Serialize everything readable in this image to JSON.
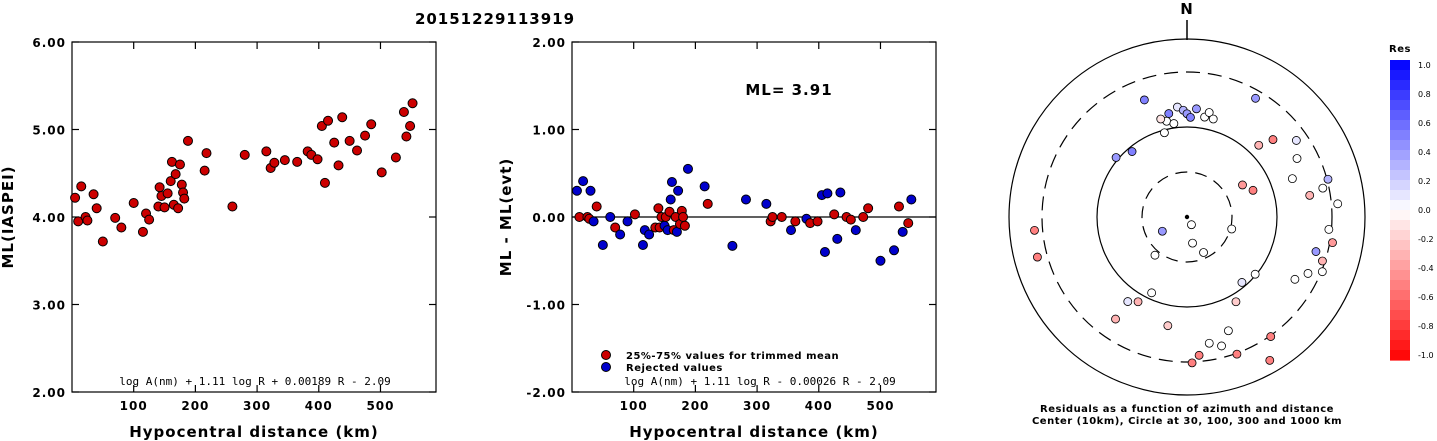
{
  "title": "20151229113919",
  "colors": {
    "red": "#cc0000",
    "blue": "#0000cc"
  },
  "chart_data": [
    {
      "type": "scatter",
      "ylabel": "ML(IASPEI)",
      "xlabel": "Hypocentral distance (km)",
      "xlim": [
        0,
        590
      ],
      "ylim": [
        2.0,
        6.0
      ],
      "xticks": [
        "100",
        "200",
        "300",
        "400",
        "500"
      ],
      "yticks": [
        "2.00",
        "3.00",
        "4.00",
        "5.00",
        "6.00"
      ],
      "formula": "log A(nm) + 1.11 log R + 0.00189 R - 2.09",
      "points": [
        [
          5,
          4.22
        ],
        [
          10,
          3.95
        ],
        [
          15,
          4.35
        ],
        [
          22,
          4.0
        ],
        [
          25,
          3.96
        ],
        [
          35,
          4.26
        ],
        [
          40,
          4.1
        ],
        [
          50,
          3.72
        ],
        [
          70,
          3.99
        ],
        [
          80,
          3.88
        ],
        [
          100,
          4.16
        ],
        [
          115,
          3.83
        ],
        [
          120,
          4.04
        ],
        [
          125,
          3.97
        ],
        [
          140,
          4.12
        ],
        [
          142,
          4.34
        ],
        [
          145,
          4.24
        ],
        [
          150,
          4.11
        ],
        [
          155,
          4.27
        ],
        [
          160,
          4.41
        ],
        [
          162,
          4.63
        ],
        [
          165,
          4.14
        ],
        [
          168,
          4.49
        ],
        [
          172,
          4.1
        ],
        [
          175,
          4.6
        ],
        [
          178,
          4.37
        ],
        [
          180,
          4.28
        ],
        [
          182,
          4.21
        ],
        [
          188,
          4.87
        ],
        [
          215,
          4.53
        ],
        [
          218,
          4.73
        ],
        [
          260,
          4.12
        ],
        [
          280,
          4.71
        ],
        [
          315,
          4.75
        ],
        [
          322,
          4.56
        ],
        [
          328,
          4.62
        ],
        [
          345,
          4.65
        ],
        [
          365,
          4.63
        ],
        [
          382,
          4.75
        ],
        [
          388,
          4.71
        ],
        [
          398,
          4.66
        ],
        [
          405,
          5.04
        ],
        [
          410,
          4.39
        ],
        [
          415,
          5.1
        ],
        [
          425,
          4.85
        ],
        [
          432,
          4.59
        ],
        [
          438,
          5.14
        ],
        [
          450,
          4.87
        ],
        [
          462,
          4.76
        ],
        [
          475,
          4.93
        ],
        [
          485,
          5.06
        ],
        [
          502,
          4.51
        ],
        [
          525,
          4.68
        ],
        [
          538,
          5.2
        ],
        [
          542,
          4.92
        ],
        [
          548,
          5.04
        ],
        [
          552,
          5.3
        ]
      ]
    },
    {
      "type": "scatter",
      "ylabel": "ML - ML(evt)",
      "xlabel": "Hypocentral distance (km)",
      "xlim": [
        0,
        590
      ],
      "ylim": [
        -2.0,
        2.0
      ],
      "xticks": [
        "100",
        "200",
        "300",
        "400",
        "500"
      ],
      "yticks": [
        "-2.00",
        "-1.00",
        "0.00",
        "1.00",
        "2.00"
      ],
      "annotation": "ML= 3.91",
      "formula": "log A(nm) + 1.11 log R - 0.00026 R - 2.09",
      "legend": [
        {
          "label": "25%-75% values for trimmed mean",
          "color": "red"
        },
        {
          "label": "Rejected values",
          "color": "blue"
        }
      ],
      "points": [
        [
          8,
          0.3,
          "blue"
        ],
        [
          12,
          0.0,
          "red"
        ],
        [
          18,
          0.41,
          "blue"
        ],
        [
          25,
          0.0,
          "red"
        ],
        [
          28,
          -0.02,
          "red"
        ],
        [
          30,
          0.3,
          "blue"
        ],
        [
          35,
          -0.05,
          "blue"
        ],
        [
          40,
          0.12,
          "red"
        ],
        [
          50,
          -0.32,
          "blue"
        ],
        [
          62,
          0.0,
          "blue"
        ],
        [
          70,
          -0.12,
          "red"
        ],
        [
          78,
          -0.2,
          "blue"
        ],
        [
          90,
          -0.05,
          "blue"
        ],
        [
          102,
          0.03,
          "red"
        ],
        [
          115,
          -0.32,
          "blue"
        ],
        [
          118,
          -0.15,
          "blue"
        ],
        [
          125,
          -0.2,
          "blue"
        ],
        [
          135,
          -0.12,
          "red"
        ],
        [
          140,
          0.1,
          "red"
        ],
        [
          142,
          -0.12,
          "red"
        ],
        [
          145,
          0.0,
          "red"
        ],
        [
          150,
          -0.1,
          "blue"
        ],
        [
          152,
          0.0,
          "red"
        ],
        [
          155,
          -0.15,
          "blue"
        ],
        [
          158,
          0.06,
          "red"
        ],
        [
          160,
          0.2,
          "blue"
        ],
        [
          162,
          0.4,
          "blue"
        ],
        [
          165,
          -0.15,
          "red"
        ],
        [
          168,
          0.0,
          "red"
        ],
        [
          170,
          -0.17,
          "blue"
        ],
        [
          172,
          0.3,
          "blue"
        ],
        [
          175,
          -0.08,
          "red"
        ],
        [
          178,
          0.07,
          "red"
        ],
        [
          180,
          0.0,
          "red"
        ],
        [
          183,
          -0.1,
          "red"
        ],
        [
          188,
          0.55,
          "blue"
        ],
        [
          215,
          0.35,
          "blue"
        ],
        [
          220,
          0.15,
          "red"
        ],
        [
          260,
          -0.33,
          "blue"
        ],
        [
          282,
          0.2,
          "blue"
        ],
        [
          315,
          0.15,
          "blue"
        ],
        [
          322,
          -0.05,
          "red"
        ],
        [
          325,
          0.0,
          "red"
        ],
        [
          340,
          0.0,
          "red"
        ],
        [
          355,
          -0.15,
          "blue"
        ],
        [
          362,
          -0.05,
          "red"
        ],
        [
          380,
          -0.02,
          "blue"
        ],
        [
          386,
          -0.07,
          "red"
        ],
        [
          398,
          -0.05,
          "red"
        ],
        [
          405,
          0.25,
          "blue"
        ],
        [
          410,
          -0.4,
          "blue"
        ],
        [
          414,
          0.27,
          "blue"
        ],
        [
          425,
          0.03,
          "red"
        ],
        [
          430,
          -0.25,
          "blue"
        ],
        [
          435,
          0.28,
          "blue"
        ],
        [
          445,
          0.0,
          "red"
        ],
        [
          452,
          -0.03,
          "red"
        ],
        [
          460,
          -0.15,
          "blue"
        ],
        [
          472,
          0.0,
          "red"
        ],
        [
          480,
          0.1,
          "red"
        ],
        [
          500,
          -0.5,
          "blue"
        ],
        [
          522,
          -0.38,
          "blue"
        ],
        [
          530,
          0.12,
          "red"
        ],
        [
          536,
          -0.17,
          "blue"
        ],
        [
          545,
          -0.07,
          "red"
        ],
        [
          550,
          0.2,
          "blue"
        ]
      ]
    },
    {
      "type": "polar-scatter",
      "north_label": "N",
      "caption_line1": "Residuals as a function of azimuth and distance",
      "caption_line2": "Center (10km), Circle at 30, 100, 300 and 1000 km",
      "colorbar": {
        "title": "Res",
        "labels": [
          "1.0",
          "0.8",
          "0.6",
          "0.4",
          "0.2",
          "0.0",
          "-0.2",
          "-0.4",
          "-0.6",
          "-0.8",
          "-1.0"
        ]
      },
      "stations": [
        [
          350,
          0.59,
          0.5
        ],
        [
          355,
          0.62,
          0.1
        ],
        [
          5,
          0.61,
          0.4
        ],
        [
          358,
          0.6,
          0.3
        ],
        [
          0,
          0.58,
          0.4
        ],
        [
          2,
          0.56,
          0.5
        ],
        [
          348,
          0.55,
          0.0
        ],
        [
          352,
          0.53,
          0.0
        ],
        [
          345,
          0.57,
          -0.1
        ],
        [
          10,
          0.57,
          0.0
        ],
        [
          12,
          0.6,
          0.0
        ],
        [
          15,
          0.57,
          0.0
        ],
        [
          340,
          0.7,
          0.5
        ],
        [
          30,
          0.77,
          0.4
        ],
        [
          345,
          0.49,
          0.0
        ],
        [
          45,
          0.57,
          -0.3
        ],
        [
          320,
          0.48,
          0.5
        ],
        [
          310,
          0.52,
          0.4
        ],
        [
          70,
          0.63,
          0.0
        ],
        [
          55,
          0.75,
          0.1
        ],
        [
          62,
          0.7,
          0.0
        ],
        [
          48,
          0.65,
          -0.5
        ],
        [
          75,
          0.82,
          0.3
        ],
        [
          78,
          0.78,
          0.0
        ],
        [
          85,
          0.85,
          0.0
        ],
        [
          95,
          0.8,
          0.0
        ],
        [
          100,
          0.83,
          -0.4
        ],
        [
          105,
          0.75,
          0.4
        ],
        [
          108,
          0.8,
          -0.3
        ],
        [
          112,
          0.82,
          0.0
        ],
        [
          115,
          0.75,
          0.0
        ],
        [
          120,
          0.7,
          0.0
        ],
        [
          80,
          0.7,
          -0.3
        ],
        [
          68,
          0.4,
          -0.5
        ],
        [
          60,
          0.36,
          -0.4
        ],
        [
          105,
          0.26,
          0.0
        ],
        [
          130,
          0.5,
          0.0
        ],
        [
          140,
          0.48,
          0.1
        ],
        [
          150,
          0.55,
          -0.2
        ],
        [
          160,
          0.68,
          0.0
        ],
        [
          165,
          0.75,
          0.0
        ],
        [
          175,
          0.78,
          -0.5
        ],
        [
          178,
          0.82,
          -0.5
        ],
        [
          190,
          0.62,
          -0.2
        ],
        [
          215,
          0.58,
          0.1
        ],
        [
          205,
          0.47,
          0.0
        ],
        [
          220,
          0.28,
          0.0
        ],
        [
          240,
          0.16,
          0.4
        ],
        [
          210,
          0.55,
          -0.3
        ],
        [
          265,
          0.86,
          -0.5
        ],
        [
          255,
          0.87,
          -0.5
        ],
        [
          215,
          0.7,
          -0.3
        ],
        [
          150,
          0.05,
          0.0
        ],
        [
          155,
          0.22,
          0.0
        ],
        [
          168,
          0.15,
          0.0
        ],
        [
          160,
          0.82,
          -0.5
        ],
        [
          145,
          0.82,
          -0.5
        ],
        [
          150,
          0.93,
          -0.5
        ],
        [
          170,
          0.72,
          0.0
        ]
      ]
    }
  ]
}
